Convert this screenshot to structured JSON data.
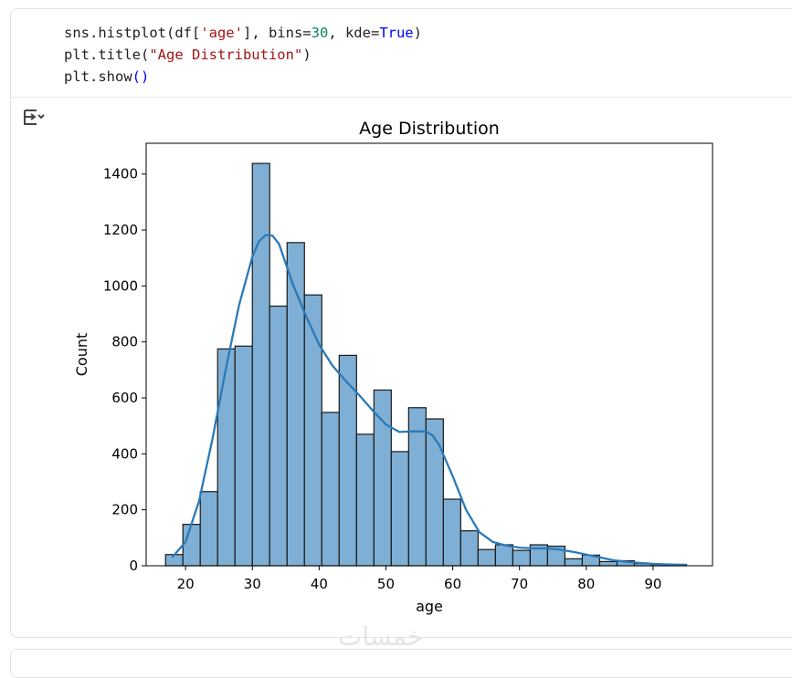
{
  "code": {
    "line1": {
      "a": "sns.histplot(df[",
      "s": "'age'",
      "b": "], bins=",
      "n": "30",
      "c": ", kde=",
      "k": "True",
      "d": ")"
    },
    "line2": {
      "a": "plt.title(",
      "s": "\"Age Distribution\"",
      "d": ")"
    },
    "line3": {
      "a": "plt.show",
      "d": "()"
    }
  },
  "output_icon": "output-toggle-icon",
  "watermark": "خمسات",
  "colors": {
    "bar_fill": "#7fafd4",
    "bar_edge": "#1a1a1a",
    "kde_line": "#2a7ab9"
  },
  "chart_data": {
    "type": "bar",
    "title": "Age Distribution",
    "xlabel": "age",
    "ylabel": "Count",
    "xlim": [
      14.1,
      98.9
    ],
    "ylim": [
      0,
      1510
    ],
    "xticks": [
      20,
      30,
      40,
      50,
      60,
      70,
      80,
      90
    ],
    "yticks": [
      0,
      200,
      400,
      600,
      800,
      1000,
      1200,
      1400
    ],
    "bin_start": 17.0,
    "bin_width": 2.6,
    "values": [
      40,
      148,
      265,
      775,
      785,
      1438,
      928,
      1155,
      968,
      548,
      752,
      470,
      628,
      408,
      565,
      525,
      238,
      125,
      58,
      75,
      55,
      75,
      70,
      25,
      38,
      15,
      18,
      8,
      5,
      5
    ],
    "kde": {
      "x": [
        18,
        20,
        22,
        24,
        26,
        28,
        30,
        31,
        32,
        33,
        34,
        35,
        36,
        38,
        40,
        42,
        44,
        46,
        48,
        50,
        52,
        54,
        56,
        57,
        58,
        60,
        62,
        64,
        66,
        68,
        70,
        72,
        74,
        76,
        78,
        80,
        82,
        84,
        86,
        88,
        90,
        92,
        95
      ],
      "y": [
        30,
        85,
        230,
        450,
        700,
        930,
        1105,
        1160,
        1182,
        1180,
        1150,
        1080,
        1010,
        895,
        790,
        715,
        660,
        610,
        555,
        505,
        478,
        480,
        480,
        465,
        430,
        320,
        200,
        120,
        85,
        72,
        65,
        62,
        62,
        58,
        50,
        40,
        30,
        20,
        14,
        10,
        7,
        5,
        3
      ]
    }
  }
}
